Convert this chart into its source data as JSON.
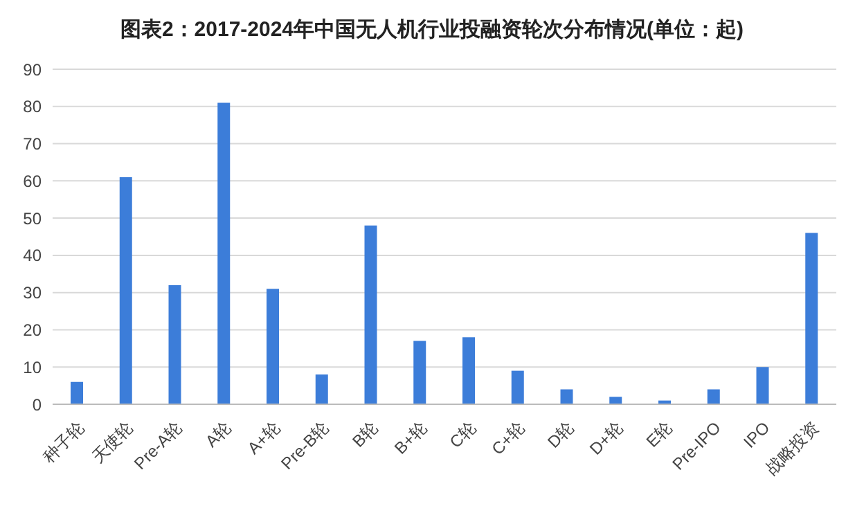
{
  "chart_data": {
    "type": "bar",
    "title": "图表2：2017-2024年中国无人机行业投融资轮次分布情况(单位：起)",
    "categories": [
      "种子轮",
      "天使轮",
      "Pre-A轮",
      "A轮",
      "A+轮",
      "Pre-B轮",
      "B轮",
      "B+轮",
      "C轮",
      "C+轮",
      "D轮",
      "D+轮",
      "E轮",
      "Pre-IPO",
      "IPO",
      "战略投资"
    ],
    "values": [
      6,
      61,
      32,
      81,
      31,
      8,
      48,
      17,
      18,
      9,
      4,
      2,
      1,
      4,
      10,
      46
    ],
    "color": "#3c7dd9",
    "ylim": [
      0,
      90
    ],
    "yticks": [
      0,
      10,
      20,
      30,
      40,
      50,
      60,
      70,
      80,
      90
    ],
    "grid": "y"
  }
}
